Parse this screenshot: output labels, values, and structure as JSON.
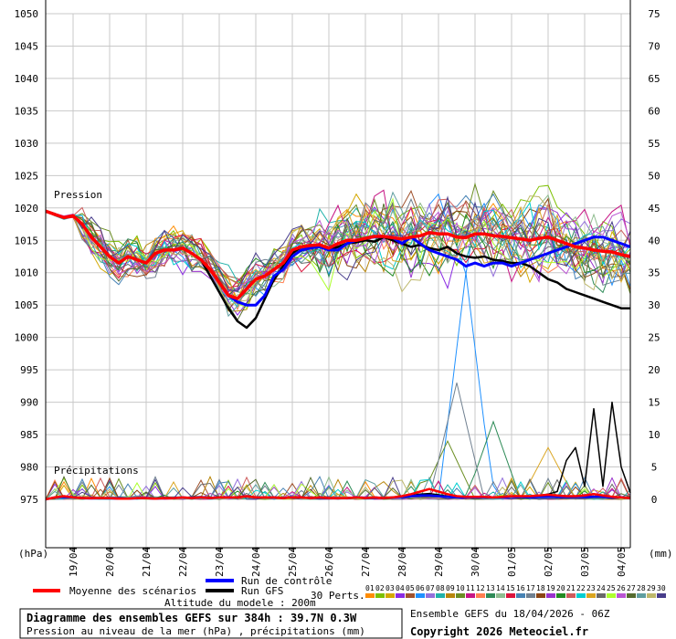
{
  "chart_data": {
    "type": "line",
    "left_axis": {
      "unit": "(hPa)",
      "ylim": [
        975,
        1050
      ],
      "ticks": [
        975,
        980,
        985,
        990,
        995,
        1000,
        1005,
        1010,
        1015,
        1020,
        1025,
        1030,
        1035,
        1040,
        1045,
        1050
      ]
    },
    "right_axis": {
      "unit": "(mm)",
      "ylim": [
        0,
        75
      ],
      "ticks": [
        0,
        5,
        10,
        15,
        20,
        25,
        30,
        35,
        40,
        45,
        50,
        55,
        60,
        65,
        70,
        75
      ]
    },
    "x_ticks": [
      "19/04",
      "20/04",
      "21/04",
      "22/04",
      "23/04",
      "24/04",
      "25/04",
      "26/04",
      "27/04",
      "28/04",
      "29/04",
      "30/04",
      "01/05",
      "02/05",
      "03/05",
      "04/05"
    ],
    "section_labels": {
      "pressure": "Pression",
      "precip": "Précipitations"
    },
    "x_hours": [
      0,
      6,
      12,
      18,
      24,
      30,
      36,
      42,
      48,
      54,
      60,
      66,
      72,
      78,
      84,
      90,
      96,
      102,
      108,
      114,
      120,
      126,
      132,
      138,
      144,
      150,
      156,
      162,
      168,
      174,
      180,
      186,
      192,
      198,
      204,
      210,
      216,
      222,
      228,
      234,
      240,
      246,
      252,
      258,
      264,
      270,
      276,
      282,
      288,
      294,
      300,
      306,
      312,
      318,
      324,
      330,
      336,
      342,
      348,
      354,
      360,
      366,
      372,
      378,
      384
    ],
    "series": [
      {
        "name": "Moyenne des scénarios",
        "color": "#ff0000",
        "pressure": [
          1019.5,
          1019,
          1018.5,
          1018.8,
          1017.5,
          1015.5,
          1014,
          1012.5,
          1011.5,
          1012.5,
          1012,
          1011.5,
          1013,
          1013.5,
          1013.5,
          1013.8,
          1013,
          1012,
          1010.5,
          1008.5,
          1006.5,
          1006,
          1007.5,
          1009,
          1009.5,
          1010.5,
          1011.5,
          1013.5,
          1014,
          1014.2,
          1014.3,
          1013.8,
          1014.5,
          1015,
          1015,
          1015.3,
          1015.6,
          1015.6,
          1015.4,
          1015.2,
          1015.5,
          1015.7,
          1016.2,
          1016,
          1016,
          1015.5,
          1015.4,
          1016,
          1016,
          1015.7,
          1015.6,
          1015.4,
          1015.2,
          1015,
          1015.3,
          1015.5,
          1015,
          1014.5,
          1014,
          1013.8,
          1013.5,
          1013.3,
          1013.2,
          1012.8,
          1012.5
        ],
        "precip": [
          0,
          0.3,
          0.5,
          0.3,
          0.2,
          0.2,
          0.2,
          0.2,
          0.1,
          0.1,
          0.2,
          0.2,
          0.1,
          0.2,
          0.2,
          0.3,
          0.2,
          0.3,
          0.2,
          0.3,
          0.3,
          0.3,
          0.5,
          0.3,
          0.3,
          0.3,
          0.2,
          0.3,
          0.3,
          0.2,
          0.3,
          0.2,
          0.2,
          0.2,
          0.3,
          0.2,
          0.3,
          0.2,
          0.3,
          0.5,
          0.8,
          1.2,
          1.6,
          1.2,
          0.8,
          0.5,
          0.4,
          0.4,
          0.4,
          0.3,
          0.4,
          0.5,
          0.5,
          0.5,
          0.6,
          0.7,
          0.6,
          0.5,
          0.5,
          0.6,
          0.8,
          0.6,
          0.4,
          0.3,
          0.2
        ]
      },
      {
        "name": "Run de contrôle",
        "color": "#0000ff",
        "pressure": [
          1019.5,
          1019,
          1018.5,
          1018.8,
          1017.5,
          1015.5,
          1014,
          1012.5,
          1011.5,
          1012.5,
          1012,
          1011.5,
          1013,
          1013.5,
          1013.5,
          1013.8,
          1013,
          1012,
          1010.5,
          1008.5,
          1006.5,
          1005.5,
          1005,
          1005,
          1006.5,
          1009.5,
          1010.5,
          1012.5,
          1013.5,
          1013.8,
          1014,
          1013.5,
          1013.5,
          1014.5,
          1015,
          1015.3,
          1015.5,
          1015.6,
          1015.4,
          1014.5,
          1015.5,
          1014.5,
          1013.5,
          1013,
          1012.5,
          1012,
          1011,
          1011.5,
          1011,
          1011.5,
          1011.5,
          1011,
          1011.5,
          1012,
          1012.5,
          1013,
          1013.5,
          1014,
          1014.5,
          1015,
          1015.5,
          1015.5,
          1015,
          1014.5,
          1014
        ],
        "precip": [
          0,
          0.3,
          0.4,
          0.3,
          0.2,
          0.2,
          0.2,
          0.2,
          0.1,
          0.1,
          0.2,
          0.2,
          0.1,
          0.2,
          0.2,
          0.3,
          0.2,
          0.3,
          0.2,
          0.3,
          0.3,
          0.3,
          0.5,
          0.3,
          0.3,
          0.3,
          0.2,
          0.3,
          0.3,
          0.2,
          0.3,
          0.2,
          0.2,
          0.2,
          0.3,
          0.2,
          0.3,
          0.2,
          0.3,
          0.4,
          0.5,
          0.6,
          0.6,
          0.5,
          0.4,
          0.3,
          0.3,
          0.3,
          0.3,
          0.3,
          0.3,
          0.4,
          0.4,
          0.3,
          0.4,
          0.4,
          0.4,
          0.4,
          0.4,
          0.4,
          0.4,
          0.4,
          0.3,
          0.3,
          0.2
        ]
      },
      {
        "name": "Run GFS",
        "color": "#000000",
        "pressure": [
          1019.5,
          1019,
          1018.5,
          1018.8,
          1017.5,
          1015.5,
          1014,
          1012.5,
          1011.5,
          1012.5,
          1012,
          1011.5,
          1013,
          1013.5,
          1013.5,
          1013.8,
          1013,
          1012,
          1009.5,
          1007,
          1004.5,
          1002.5,
          1001.5,
          1003,
          1006,
          1009,
          1011,
          1013,
          1014,
          1014.2,
          1014.3,
          1013.5,
          1014,
          1014.5,
          1014.7,
          1015,
          1014.8,
          1015.5,
          1015,
          1014.5,
          1014,
          1014.3,
          1013.8,
          1013.5,
          1014,
          1013,
          1012.5,
          1012.3,
          1012.5,
          1012,
          1011.8,
          1011.5,
          1011.5,
          1011,
          1010,
          1009,
          1008.5,
          1007.5,
          1007,
          1006.5,
          1006,
          1005.5,
          1005,
          1004.5,
          1004.5
        ],
        "precip": [
          0,
          0.3,
          0.4,
          0.3,
          0.2,
          0.2,
          0.2,
          0.2,
          0.1,
          0.1,
          0.2,
          0.2,
          0.1,
          0.2,
          0.2,
          0.3,
          0.2,
          0.3,
          0.2,
          0.3,
          0.3,
          0.3,
          0.5,
          0.3,
          0.3,
          0.3,
          0.2,
          0.3,
          0.3,
          0.2,
          0.3,
          0.2,
          0.2,
          0.2,
          0.3,
          0.2,
          0.3,
          0.2,
          0.3,
          0.4,
          0.6,
          0.8,
          0.9,
          0.7,
          0.5,
          0.3,
          0.3,
          0.3,
          0.3,
          0.3,
          0.3,
          0.4,
          0.5,
          0.5,
          0.6,
          0.8,
          1.2,
          6,
          8,
          2,
          14,
          2,
          15,
          5,
          1
        ]
      }
    ],
    "member_colors": [
      "#ff8c00",
      "#7cc000",
      "#d4a800",
      "#8a2be2",
      "#a0522d",
      "#1e90ff",
      "#9370db",
      "#20b2aa",
      "#b8860b",
      "#6b8e23",
      "#c71585",
      "#ff7f50",
      "#2e8b57",
      "#8fbc8f",
      "#dc143c",
      "#4682b4",
      "#708090",
      "#8b4513",
      "#9932cc",
      "#228b22",
      "#cd5c5c",
      "#00ced1",
      "#daa520",
      "#696969",
      "#adff2f",
      "#ba55d3",
      "#556b2f",
      "#5f9ea0",
      "#bdb76b",
      "#483d8b"
    ],
    "spike_members": [
      {
        "member": 5,
        "precip_peak_hour": 276,
        "precip_peak_value": 35
      },
      {
        "member": 16,
        "precip_peak_hour": 270,
        "precip_peak_value": 18
      },
      {
        "member": 12,
        "precip_peak_hour": 294,
        "precip_peak_value": 12
      },
      {
        "member": 22,
        "precip_peak_hour": 330,
        "precip_peak_value": 8
      },
      {
        "member": 9,
        "precip_peak_hour": 264,
        "precip_peak_value": 9
      }
    ]
  },
  "legend": {
    "mean_label": "Moyenne des scénarios",
    "control_label": "Run de contrôle",
    "gfs_label": "Run GFS",
    "perts_label": "30 Perts.",
    "member_numbers": [
      "01",
      "02",
      "03",
      "04",
      "05",
      "06",
      "07",
      "08",
      "09",
      "10",
      "11",
      "12",
      "13",
      "14",
      "15",
      "16",
      "17",
      "18",
      "19",
      "20",
      "21",
      "22",
      "23",
      "24",
      "25",
      "26",
      "27",
      "28",
      "29",
      "30"
    ],
    "altitude": "Altitude du modele : 200m"
  },
  "footer": {
    "title": "Diagramme des ensembles GEFS sur 384h : 39.7N 0.3W",
    "subtitle": "Pression au niveau de la mer (hPa) , précipitations (mm)",
    "run_info": "Ensemble GEFS du 18/04/2026 - 06Z",
    "copyright": "Copyright 2026 Meteociel.fr"
  }
}
